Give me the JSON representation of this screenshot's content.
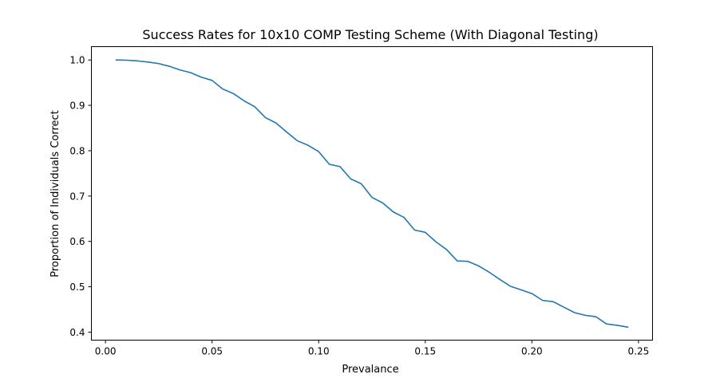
{
  "chart_data": {
    "type": "line",
    "title": "Success Rates for 10x10 COMP Testing Scheme (With Diagonal Testing)",
    "xlabel": "Prevalance",
    "ylabel": "Proportion of Individuals Correct",
    "xlim": [
      -0.0066,
      0.2566
    ],
    "ylim": [
      0.3823,
      1.0294
    ],
    "xticks": [
      0.0,
      0.05,
      0.1,
      0.15,
      0.2,
      0.25
    ],
    "xtick_labels": [
      "0.00",
      "0.05",
      "0.10",
      "0.15",
      "0.20",
      "0.25"
    ],
    "yticks": [
      0.4,
      0.5,
      0.6,
      0.7,
      0.8,
      0.9,
      1.0
    ],
    "ytick_labels": [
      "0.4",
      "0.5",
      "0.6",
      "0.7",
      "0.8",
      "0.9",
      "1.0"
    ],
    "grid": false,
    "legend": false,
    "line_color": "#1f77b4",
    "series": [
      {
        "x": [
          0.005,
          0.01,
          0.015,
          0.02,
          0.025,
          0.03,
          0.035,
          0.04,
          0.045,
          0.05,
          0.055,
          0.06,
          0.065,
          0.07,
          0.075,
          0.08,
          0.085,
          0.09,
          0.095,
          0.1,
          0.105,
          0.11,
          0.115,
          0.12,
          0.125,
          0.13,
          0.135,
          0.14,
          0.145,
          0.15,
          0.155,
          0.16,
          0.165,
          0.17,
          0.175,
          0.18,
          0.185,
          0.19,
          0.195,
          0.2,
          0.205,
          0.21,
          0.215,
          0.22,
          0.225,
          0.23,
          0.235,
          0.24,
          0.245
        ],
        "y": [
          1.0,
          0.9995,
          0.998,
          0.9955,
          0.992,
          0.986,
          0.978,
          0.972,
          0.962,
          0.955,
          0.936,
          0.926,
          0.91,
          0.897,
          0.873,
          0.861,
          0.841,
          0.822,
          0.812,
          0.798,
          0.77,
          0.765,
          0.738,
          0.727,
          0.697,
          0.685,
          0.665,
          0.653,
          0.625,
          0.62,
          0.599,
          0.582,
          0.557,
          0.556,
          0.546,
          0.532,
          0.516,
          0.501,
          0.493,
          0.485,
          0.47,
          0.467,
          0.455,
          0.443,
          0.437,
          0.434,
          0.418,
          0.415,
          0.411
        ]
      }
    ]
  }
}
